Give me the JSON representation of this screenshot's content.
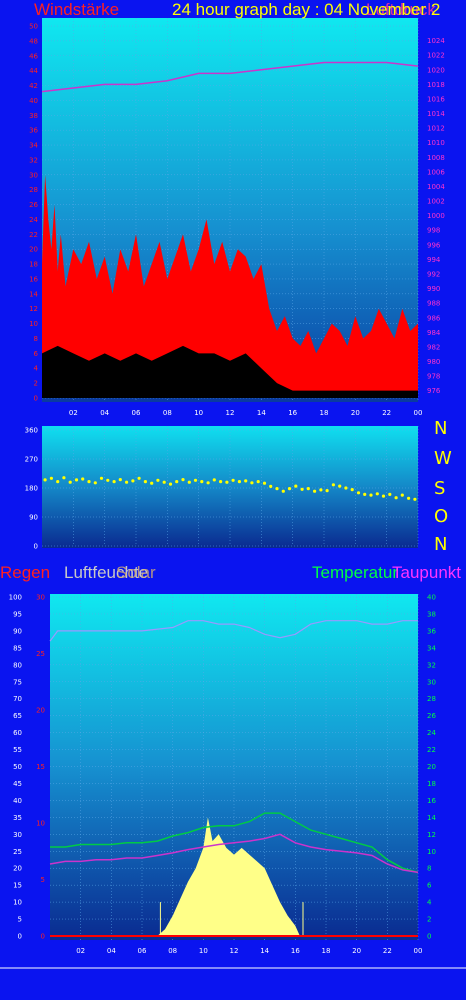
{
  "header": {
    "wind_label": "Windstärke",
    "title": "24 hour graph day : 04 November 2",
    "overlap_label": "Luftdruck"
  },
  "compass": {
    "n": "N",
    "w": "W",
    "s": "S",
    "o": "O",
    "n2": "N"
  },
  "legend_bottom": {
    "regen": "Regen",
    "luftfeuchte": "Luftfeuchte",
    "solar": "Solar",
    "temperatur": "Temperatur",
    "taupunkt": "Taupunkt"
  },
  "colors": {
    "background": "#0a14f0",
    "wind_gust": "#ff0000",
    "wind_avg": "#000000",
    "pressure": "#cc33cc",
    "direction": "#ffff00",
    "temperature": "#00cc44",
    "dewpoint": "#cc33cc",
    "humidity": "#9999ff",
    "solar": "#ffff88",
    "rain": "#ff0000"
  },
  "chart_data": [
    {
      "type": "area",
      "name": "wind",
      "x_ticks": [
        "02",
        "04",
        "06",
        "08",
        "10",
        "12",
        "14",
        "16",
        "18",
        "20",
        "22",
        "00"
      ],
      "y_ticks_left": [
        "0",
        "2",
        "4",
        "6",
        "8",
        "10",
        "12",
        "14",
        "16",
        "18",
        "20",
        "22",
        "24",
        "26",
        "28",
        "30",
        "32",
        "34",
        "36",
        "38",
        "40",
        "42",
        "44",
        "46",
        "48",
        "50"
      ],
      "y_ticks_right": [
        "976",
        "978",
        "980",
        "982",
        "984",
        "986",
        "988",
        "990",
        "992",
        "994",
        "996",
        "998",
        "1000",
        "1002",
        "1004",
        "1006",
        "1008",
        "1010",
        "1012",
        "1014",
        "1016",
        "1018",
        "1020",
        "1022",
        "1024"
      ],
      "ylim_left": [
        0,
        50
      ],
      "ylim_right": [
        975,
        1026
      ],
      "xlim": [
        0,
        24
      ],
      "gust": [
        [
          0.0,
          18
        ],
        [
          0.2,
          30
        ],
        [
          0.4,
          24
        ],
        [
          0.6,
          20
        ],
        [
          0.8,
          26
        ],
        [
          1.0,
          17
        ],
        [
          1.2,
          22
        ],
        [
          1.5,
          15
        ],
        [
          2.0,
          20
        ],
        [
          2.5,
          18
        ],
        [
          3.0,
          21
        ],
        [
          3.5,
          16
        ],
        [
          4.0,
          19
        ],
        [
          4.5,
          14
        ],
        [
          5.0,
          20
        ],
        [
          5.5,
          17
        ],
        [
          6.0,
          22
        ],
        [
          6.5,
          15
        ],
        [
          7.0,
          18
        ],
        [
          7.5,
          21
        ],
        [
          8.0,
          16
        ],
        [
          8.5,
          19
        ],
        [
          9.0,
          22
        ],
        [
          9.5,
          17
        ],
        [
          10.0,
          20
        ],
        [
          10.5,
          24
        ],
        [
          11.0,
          18
        ],
        [
          11.5,
          21
        ],
        [
          12.0,
          17
        ],
        [
          12.5,
          20
        ],
        [
          13.0,
          19
        ],
        [
          13.5,
          16
        ],
        [
          14.0,
          18
        ],
        [
          14.5,
          12
        ],
        [
          15.0,
          9
        ],
        [
          15.5,
          11
        ],
        [
          16.0,
          8
        ],
        [
          16.5,
          7
        ],
        [
          17.0,
          9
        ],
        [
          17.5,
          6
        ],
        [
          18.0,
          8
        ],
        [
          18.5,
          10
        ],
        [
          19.0,
          9
        ],
        [
          19.5,
          7
        ],
        [
          20.0,
          11
        ],
        [
          20.5,
          8
        ],
        [
          21.0,
          9
        ],
        [
          21.5,
          12
        ],
        [
          22.0,
          10
        ],
        [
          22.5,
          8
        ],
        [
          23.0,
          12
        ],
        [
          23.5,
          9
        ],
        [
          24.0,
          10
        ]
      ],
      "average": [
        [
          0.0,
          6
        ],
        [
          1.0,
          7
        ],
        [
          2.0,
          6
        ],
        [
          3.0,
          5
        ],
        [
          4.0,
          6
        ],
        [
          5.0,
          5
        ],
        [
          6.0,
          6
        ],
        [
          7.0,
          5
        ],
        [
          8.0,
          6
        ],
        [
          9.0,
          7
        ],
        [
          10.0,
          6
        ],
        [
          11.0,
          6
        ],
        [
          12.0,
          5
        ],
        [
          13.0,
          6
        ],
        [
          14.0,
          4
        ],
        [
          14.5,
          3
        ],
        [
          15.0,
          2
        ],
        [
          16.0,
          1
        ],
        [
          17.0,
          1
        ],
        [
          18.0,
          1
        ],
        [
          19.0,
          1
        ],
        [
          20.0,
          1
        ],
        [
          21.0,
          1
        ],
        [
          22.0,
          1
        ],
        [
          23.0,
          1
        ],
        [
          24.0,
          1
        ]
      ],
      "pressure": [
        [
          0.0,
          1017
        ],
        [
          2.0,
          1017.5
        ],
        [
          4.0,
          1018
        ],
        [
          6.0,
          1018
        ],
        [
          8.0,
          1018.5
        ],
        [
          10.0,
          1019.5
        ],
        [
          12.0,
          1019.5
        ],
        [
          14.0,
          1020
        ],
        [
          16.0,
          1020.5
        ],
        [
          18.0,
          1021
        ],
        [
          20.0,
          1021
        ],
        [
          22.0,
          1021
        ],
        [
          24.0,
          1020.5
        ]
      ]
    },
    {
      "type": "scatter",
      "name": "wind-direction",
      "y_ticks": [
        "0",
        "90",
        "180",
        "270",
        "360"
      ],
      "ylim": [
        0,
        360
      ],
      "xlim": [
        0,
        24
      ],
      "points": [
        [
          0.2,
          205
        ],
        [
          0.6,
          210
        ],
        [
          1.0,
          200
        ],
        [
          1.4,
          212
        ],
        [
          1.8,
          198
        ],
        [
          2.2,
          205
        ],
        [
          2.6,
          208
        ],
        [
          3.0,
          200
        ],
        [
          3.4,
          196
        ],
        [
          3.8,
          210
        ],
        [
          4.2,
          204
        ],
        [
          4.6,
          200
        ],
        [
          5.0,
          206
        ],
        [
          5.4,
          198
        ],
        [
          5.8,
          202
        ],
        [
          6.2,
          210
        ],
        [
          6.6,
          200
        ],
        [
          7.0,
          195
        ],
        [
          7.4,
          204
        ],
        [
          7.8,
          198
        ],
        [
          8.2,
          192
        ],
        [
          8.6,
          200
        ],
        [
          9.0,
          206
        ],
        [
          9.4,
          198
        ],
        [
          9.8,
          204
        ],
        [
          10.2,
          200
        ],
        [
          10.6,
          196
        ],
        [
          11.0,
          205
        ],
        [
          11.4,
          200
        ],
        [
          11.8,
          198
        ],
        [
          12.2,
          204
        ],
        [
          12.6,
          200
        ],
        [
          13.0,
          202
        ],
        [
          13.4,
          196
        ],
        [
          13.8,
          200
        ],
        [
          14.2,
          195
        ],
        [
          14.6,
          185
        ],
        [
          15.0,
          178
        ],
        [
          15.4,
          170
        ],
        [
          15.8,
          178
        ],
        [
          16.2,
          186
        ],
        [
          16.6,
          176
        ],
        [
          17.0,
          178
        ],
        [
          17.4,
          170
        ],
        [
          17.8,
          174
        ],
        [
          18.2,
          172
        ],
        [
          18.6,
          190
        ],
        [
          19.0,
          186
        ],
        [
          19.4,
          180
        ],
        [
          19.8,
          175
        ],
        [
          20.2,
          165
        ],
        [
          20.6,
          160
        ],
        [
          21.0,
          158
        ],
        [
          21.4,
          162
        ],
        [
          21.8,
          155
        ],
        [
          22.2,
          160
        ],
        [
          22.6,
          150
        ],
        [
          23.0,
          158
        ],
        [
          23.4,
          148
        ],
        [
          23.8,
          145
        ]
      ]
    },
    {
      "type": "line",
      "name": "temp-humidity",
      "x_ticks": [
        "02",
        "04",
        "06",
        "08",
        "10",
        "12",
        "14",
        "16",
        "18",
        "20",
        "22",
        "00"
      ],
      "y_ticks_left_humidity": [
        "0",
        "5",
        "10",
        "15",
        "20",
        "25",
        "30",
        "35",
        "40",
        "45",
        "50",
        "55",
        "60",
        "65",
        "70",
        "75",
        "80",
        "85",
        "90",
        "95",
        "100"
      ],
      "y_ticks_left_rain": [
        "0",
        "5",
        "10",
        "15",
        "20",
        "25",
        "30"
      ],
      "y_ticks_right": [
        "0",
        "2",
        "4",
        "6",
        "8",
        "10",
        "12",
        "14",
        "16",
        "18",
        "20",
        "22",
        "24",
        "26",
        "28",
        "30",
        "32",
        "34",
        "36",
        "38",
        "40"
      ],
      "ylim_humidity": [
        0,
        100
      ],
      "ylim_temperature": [
        0,
        40
      ],
      "xlim": [
        0,
        24
      ],
      "humidity": [
        [
          0.0,
          87
        ],
        [
          0.5,
          90
        ],
        [
          2.0,
          90
        ],
        [
          4.0,
          90
        ],
        [
          6.0,
          90
        ],
        [
          8.0,
          91
        ],
        [
          9.0,
          93
        ],
        [
          10.0,
          93
        ],
        [
          11.0,
          92
        ],
        [
          12.0,
          92
        ],
        [
          13.0,
          91
        ],
        [
          14.0,
          89
        ],
        [
          15.0,
          88
        ],
        [
          16.0,
          89
        ],
        [
          17.0,
          92
        ],
        [
          18.0,
          93
        ],
        [
          19.0,
          93
        ],
        [
          20.0,
          93
        ],
        [
          21.0,
          92
        ],
        [
          22.0,
          92
        ],
        [
          23.0,
          93
        ],
        [
          24.0,
          93
        ]
      ],
      "temperature": [
        [
          0.0,
          10.5
        ],
        [
          1.0,
          10.5
        ],
        [
          2.0,
          10.8
        ],
        [
          3.0,
          10.8
        ],
        [
          4.0,
          10.8
        ],
        [
          5.0,
          11
        ],
        [
          6.0,
          11
        ],
        [
          7.0,
          11.2
        ],
        [
          8.0,
          11.8
        ],
        [
          9.0,
          12.2
        ],
        [
          10.0,
          12.8
        ],
        [
          11.0,
          13
        ],
        [
          12.0,
          13
        ],
        [
          13.0,
          13.5
        ],
        [
          14.0,
          14.5
        ],
        [
          15.0,
          14.5
        ],
        [
          16.0,
          13.5
        ],
        [
          17.0,
          12.5
        ],
        [
          18.0,
          12
        ],
        [
          19.0,
          11.5
        ],
        [
          20.0,
          11
        ],
        [
          21.0,
          10.5
        ],
        [
          22.0,
          9
        ],
        [
          23.0,
          8
        ],
        [
          24.0,
          7.5
        ]
      ],
      "dewpoint": [
        [
          0.0,
          8.5
        ],
        [
          1.0,
          8.8
        ],
        [
          2.0,
          8.8
        ],
        [
          3.0,
          9
        ],
        [
          4.0,
          9
        ],
        [
          5.0,
          9.2
        ],
        [
          6.0,
          9.2
        ],
        [
          7.0,
          9.5
        ],
        [
          8.0,
          9.8
        ],
        [
          9.0,
          10.2
        ],
        [
          10.0,
          10.5
        ],
        [
          11.0,
          10.8
        ],
        [
          12.0,
          11
        ],
        [
          13.0,
          11.2
        ],
        [
          14.0,
          11.5
        ],
        [
          15.0,
          12
        ],
        [
          16.0,
          11
        ],
        [
          17.0,
          10.5
        ],
        [
          18.0,
          10.2
        ],
        [
          19.0,
          10
        ],
        [
          20.0,
          9.8
        ],
        [
          21.0,
          9.5
        ],
        [
          22.0,
          8.5
        ],
        [
          23.0,
          7.8
        ],
        [
          24.0,
          7.5
        ]
      ],
      "solar_rel": [
        [
          0.0,
          0
        ],
        [
          7.0,
          0
        ],
        [
          7.5,
          0.02
        ],
        [
          8.0,
          0.06
        ],
        [
          8.5,
          0.11
        ],
        [
          9.0,
          0.16
        ],
        [
          9.5,
          0.2
        ],
        [
          10.0,
          0.26
        ],
        [
          10.3,
          0.35
        ],
        [
          10.6,
          0.28
        ],
        [
          11.0,
          0.3
        ],
        [
          11.5,
          0.26
        ],
        [
          12.0,
          0.24
        ],
        [
          12.5,
          0.26
        ],
        [
          13.0,
          0.24
        ],
        [
          13.5,
          0.22
        ],
        [
          14.0,
          0.2
        ],
        [
          14.5,
          0.15
        ],
        [
          15.0,
          0.1
        ],
        [
          15.5,
          0.06
        ],
        [
          16.0,
          0.03
        ],
        [
          16.3,
          0
        ],
        [
          24.0,
          0
        ]
      ],
      "rain": [
        [
          0.0,
          0
        ],
        [
          24.0,
          0
        ]
      ]
    }
  ]
}
